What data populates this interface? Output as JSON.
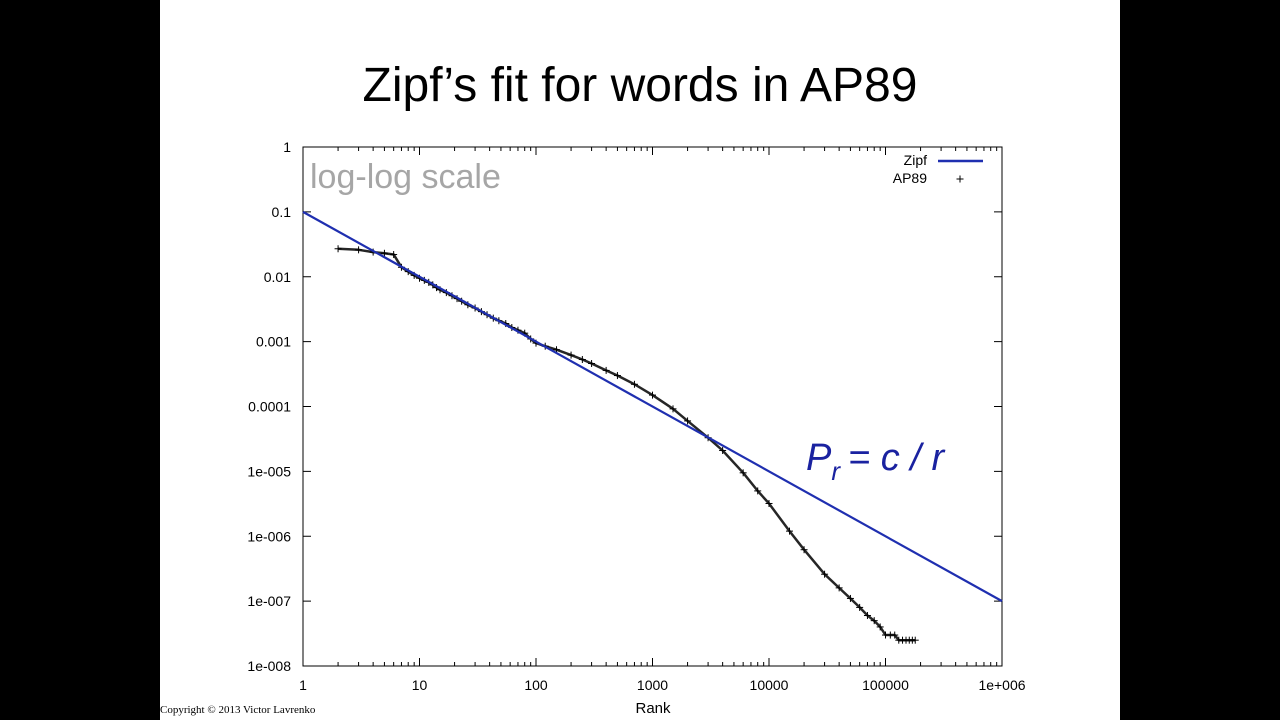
{
  "slide": {
    "title": "Zipf’s fit for words in AP89",
    "copyright": "Copyright © 2013 Victor Lavrenko"
  },
  "colors": {
    "zipf_line": "#1f2fb0",
    "ap89_points": "#000000",
    "annotation_gray": "#a6a6a6",
    "formula": "#1a22a0"
  },
  "chart_data": {
    "type": "scatter",
    "xscale": "log",
    "yscale": "log",
    "xlim": [
      1,
      1000000
    ],
    "ylim": [
      1e-08,
      1
    ],
    "xlabel": "Rank",
    "ylabel": "",
    "grid": false,
    "legend_position": "top-right",
    "x_ticks": [
      {
        "value": 1,
        "label": "1"
      },
      {
        "value": 10,
        "label": "10"
      },
      {
        "value": 100,
        "label": "100"
      },
      {
        "value": 1000,
        "label": "1000"
      },
      {
        "value": 10000,
        "label": "10000"
      },
      {
        "value": 100000,
        "label": "100000"
      },
      {
        "value": 1000000,
        "label": "1e+006"
      }
    ],
    "y_ticks": [
      {
        "value": 1,
        "label": "1"
      },
      {
        "value": 0.1,
        "label": "0.1"
      },
      {
        "value": 0.01,
        "label": "0.01"
      },
      {
        "value": 0.001,
        "label": "0.001"
      },
      {
        "value": 0.0001,
        "label": "0.0001"
      },
      {
        "value": 1e-05,
        "label": "1e-005"
      },
      {
        "value": 1e-06,
        "label": "1e-006"
      },
      {
        "value": 1e-07,
        "label": "1e-007"
      },
      {
        "value": 1e-08,
        "label": "1e-008"
      }
    ],
    "annotations": {
      "scale_note": "log-log scale",
      "formula": {
        "main": "P",
        "sub": "r",
        "rest": "= c / r"
      }
    },
    "series": [
      {
        "name": "Zipf",
        "kind": "line",
        "c": 0.1,
        "x": [
          1,
          1000000
        ],
        "y": [
          0.1,
          1e-07
        ]
      },
      {
        "name": "AP89",
        "kind": "points",
        "marker": "+",
        "x": [
          2,
          3,
          4,
          5,
          6,
          7,
          8,
          9,
          10,
          11,
          12,
          13,
          14,
          15,
          17,
          19,
          21,
          23,
          26,
          30,
          34,
          38,
          43,
          48,
          55,
          62,
          70,
          80,
          90,
          100,
          120,
          150,
          200,
          250,
          300,
          400,
          500,
          700,
          1000,
          1500,
          2000,
          3000,
          4000,
          6000,
          8000,
          10000,
          15000,
          20000,
          30000,
          40000,
          50000,
          60000,
          70000,
          80000,
          90000,
          100000,
          110000,
          120000,
          130000,
          140000,
          150000,
          160000,
          170000,
          180000
        ],
        "y": [
          0.027,
          0.026,
          0.024,
          0.023,
          0.022,
          0.014,
          0.012,
          0.0105,
          0.0095,
          0.0088,
          0.0082,
          0.0075,
          0.0068,
          0.0063,
          0.0057,
          0.0051,
          0.0046,
          0.0042,
          0.0037,
          0.0033,
          0.0029,
          0.0026,
          0.0023,
          0.0021,
          0.0019,
          0.00165,
          0.0015,
          0.00135,
          0.0011,
          0.00095,
          0.00085,
          0.00075,
          0.00062,
          0.00053,
          0.00046,
          0.00036,
          0.0003,
          0.00022,
          0.00015,
          9.2e-05,
          6e-05,
          3.3e-05,
          2.1e-05,
          9.5e-06,
          5e-06,
          3.2e-06,
          1.2e-06,
          6.2e-07,
          2.6e-07,
          1.6e-07,
          1.1e-07,
          8e-08,
          6e-08,
          5e-08,
          4e-08,
          3e-08,
          3e-08,
          3e-08,
          2.5e-08,
          2.5e-08,
          2.5e-08,
          2.5e-08,
          2.5e-08,
          2.5e-08
        ]
      }
    ]
  }
}
